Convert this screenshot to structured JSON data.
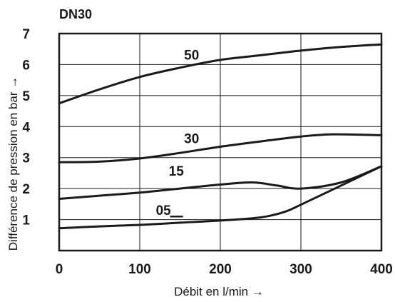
{
  "chart_data": {
    "type": "line",
    "title": "DN30",
    "xlabel": "Débit en l/min →",
    "ylabel": "Différence de pression en bar →",
    "xlim": [
      0,
      400
    ],
    "ylim": [
      0,
      7
    ],
    "x_ticks": [
      "0",
      "100",
      "200",
      "300",
      "400"
    ],
    "y_ticks": [
      "1",
      "2",
      "3",
      "4",
      "5",
      "6",
      "7"
    ],
    "grid": true,
    "colors": {
      "line": "#1a1a1a",
      "grid": "#1a1a1a",
      "frame": "#1a1a1a"
    },
    "series": [
      {
        "name": "50",
        "x": [
          0,
          50,
          100,
          150,
          200,
          250,
          300,
          350,
          400
        ],
        "y": [
          4.75,
          5.2,
          5.6,
          5.9,
          6.15,
          6.3,
          6.45,
          6.57,
          6.65
        ]
      },
      {
        "name": "30",
        "x": [
          0,
          50,
          100,
          150,
          200,
          250,
          300,
          340,
          400
        ],
        "y": [
          2.85,
          2.87,
          2.97,
          3.15,
          3.35,
          3.52,
          3.68,
          3.75,
          3.72
        ]
      },
      {
        "name": "15",
        "x": [
          0,
          50,
          100,
          150,
          200,
          240,
          270,
          300,
          350,
          400
        ],
        "y": [
          1.67,
          1.77,
          1.87,
          2.0,
          2.13,
          2.2,
          2.1,
          2.0,
          2.2,
          2.72
        ]
      },
      {
        "name": "05",
        "x": [
          0,
          50,
          100,
          150,
          200,
          250,
          280,
          300,
          350,
          400
        ],
        "y": [
          0.72,
          0.78,
          0.83,
          0.9,
          0.97,
          1.07,
          1.25,
          1.48,
          2.1,
          2.72
        ]
      }
    ]
  }
}
